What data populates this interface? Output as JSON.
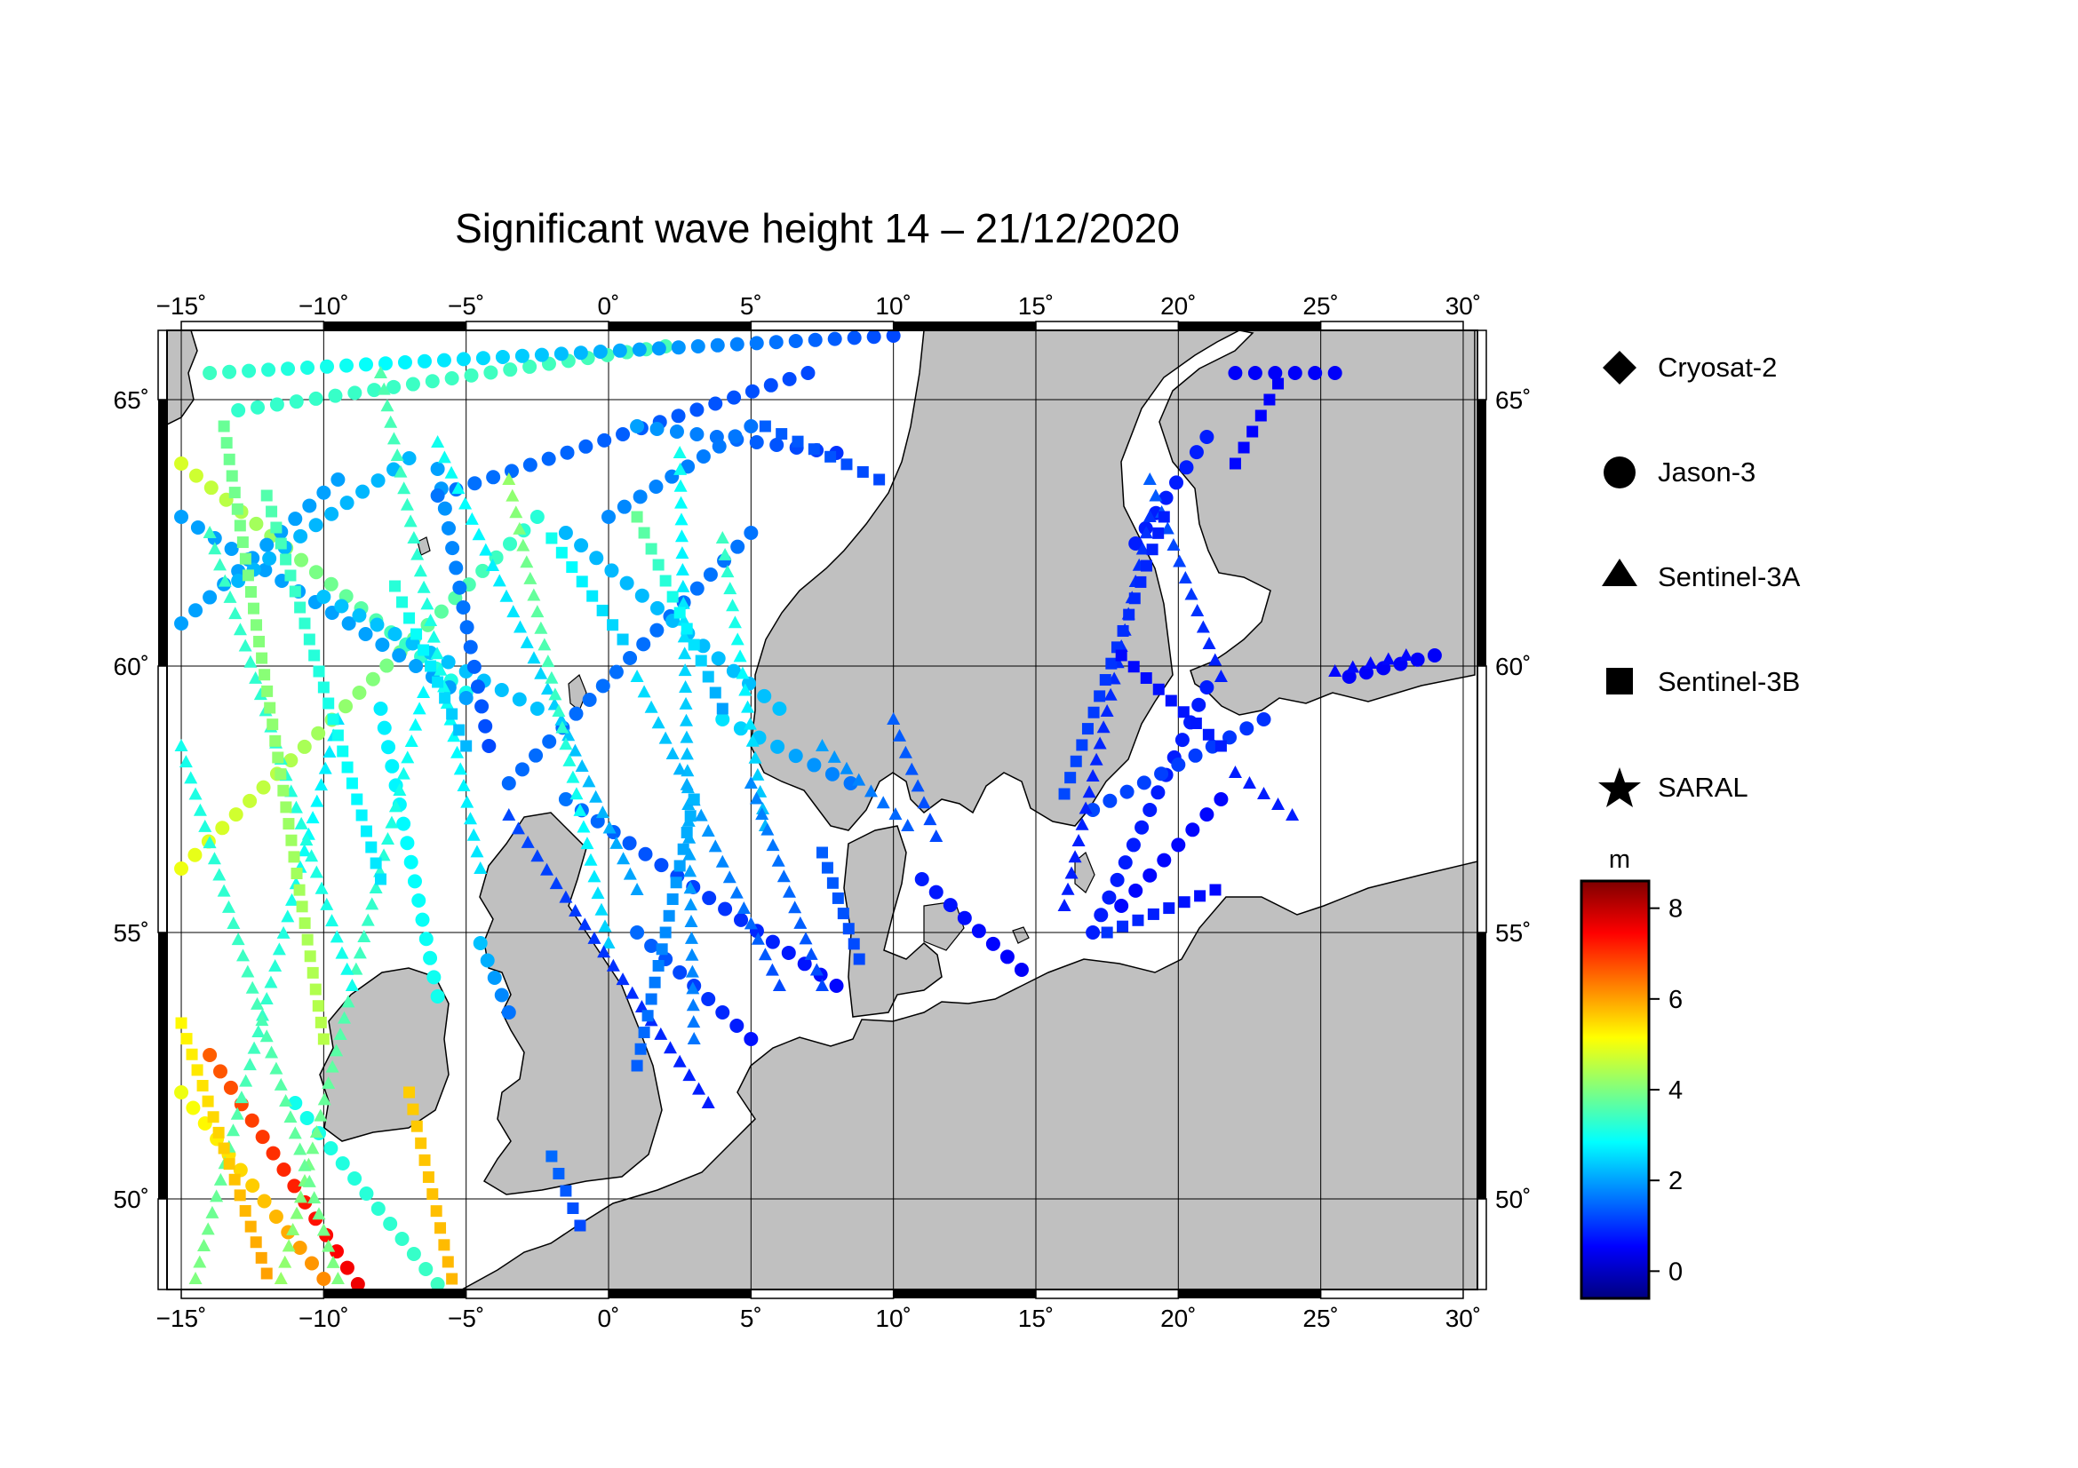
{
  "title": "Significant wave height 14 – 21/12/2020",
  "map": {
    "lon_range": [
      -15.5,
      30.5
    ],
    "lat_range": [
      48.3,
      66.3
    ],
    "lon_ticks": [
      -15,
      -10,
      -5,
      0,
      5,
      10,
      15,
      20,
      25,
      30
    ],
    "lon_labels": [
      "−15˚",
      "−10˚",
      "−5˚",
      "0˚",
      "5˚",
      "10˚",
      "15˚",
      "20˚",
      "25˚",
      "30˚"
    ],
    "lat_ticks": [
      50,
      55,
      60,
      65
    ],
    "lat_labels": [
      "50˚",
      "55˚",
      "60˚",
      "65˚"
    ],
    "land_color": "#c0c0c0",
    "sea_color": "#ffffff",
    "grid": true
  },
  "legend": {
    "items": [
      {
        "label": "Cryosat-2",
        "symbol": "diamond"
      },
      {
        "label": "Jason-3",
        "symbol": "circle"
      },
      {
        "label": "Sentinel-3A",
        "symbol": "triangle"
      },
      {
        "label": "Sentinel-3B",
        "symbol": "square"
      },
      {
        "label": "SARAL",
        "symbol": "star"
      }
    ]
  },
  "colorbar": {
    "unit": "m",
    "min": -0.6,
    "max": 8.6,
    "ticks": [
      0,
      2,
      4,
      6,
      8
    ],
    "tick_labels": [
      "0",
      "2",
      "4",
      "6",
      "8"
    ],
    "colormap": "jet"
  },
  "chart_data": {
    "type": "scatter",
    "title": "Significant wave height 14 – 21/12/2020",
    "value_unit": "m",
    "tracks": [
      {
        "satellite": "Jason-3",
        "start": [
          -15,
          56.2
        ],
        "end": [
          -2.5,
          62.8
        ],
        "swh": [
          5.0,
          3.2
        ]
      },
      {
        "satellite": "Jason-3",
        "start": [
          -15,
          63.8
        ],
        "end": [
          -5,
          59.5
        ],
        "swh": [
          4.8,
          3.0
        ]
      },
      {
        "satellite": "Jason-3",
        "start": [
          -14,
          52.7
        ],
        "end": [
          -8.8,
          48.4
        ],
        "swh": [
          6.6,
          7.6
        ]
      },
      {
        "satellite": "Jason-3",
        "start": [
          -15,
          52.0
        ],
        "end": [
          -10,
          48.5
        ],
        "swh": [
          5.0,
          6.2
        ]
      },
      {
        "satellite": "Jason-3",
        "start": [
          -15,
          62.8
        ],
        "end": [
          -5,
          59.4
        ],
        "swh": [
          2.0,
          2.0
        ]
      },
      {
        "satellite": "Jason-3",
        "start": [
          -15,
          60.8
        ],
        "end": [
          -9.5,
          63.5
        ],
        "swh": [
          2.0,
          2.0
        ]
      },
      {
        "satellite": "Jason-3",
        "start": [
          -13,
          61.6
        ],
        "end": [
          -7,
          63.9
        ],
        "swh": [
          2.2,
          2.2
        ]
      },
      {
        "satellite": "Jason-3",
        "start": [
          -10,
          61.3
        ],
        "end": [
          -2.5,
          59.2
        ],
        "swh": [
          2.3,
          2.3
        ]
      },
      {
        "satellite": "Jason-3",
        "start": [
          -6,
          63.7
        ],
        "end": [
          -4.2,
          58.5
        ],
        "swh": [
          2.0,
          1.2
        ]
      },
      {
        "satellite": "Jason-3",
        "start": [
          -3.5,
          57.8
        ],
        "end": [
          5,
          62.5
        ],
        "swh": [
          1.5,
          1.6
        ]
      },
      {
        "satellite": "Jason-3",
        "start": [
          -1.5,
          62.5
        ],
        "end": [
          6,
          59.2
        ],
        "swh": [
          2.2,
          2.3
        ]
      },
      {
        "satellite": "Jason-3",
        "start": [
          -6,
          63.2
        ],
        "end": [
          7,
          65.5
        ],
        "swh": [
          1.6,
          1.2
        ]
      },
      {
        "satellite": "Jason-3",
        "start": [
          -13,
          64.8
        ],
        "end": [
          2,
          66
        ],
        "swh": [
          3.3,
          3.5
        ]
      },
      {
        "satellite": "Jason-3",
        "start": [
          -14,
          65.5
        ],
        "end": [
          10,
          66.2
        ],
        "swh": [
          3.4,
          1.2
        ]
      },
      {
        "satellite": "Jason-3",
        "start": [
          1,
          64.5
        ],
        "end": [
          8,
          64.0
        ],
        "swh": [
          2.0,
          1.0
        ]
      },
      {
        "satellite": "Jason-3",
        "start": [
          0,
          62.8
        ],
        "end": [
          5,
          64.5
        ],
        "swh": [
          1.8,
          1.6
        ]
      },
      {
        "satellite": "Jason-3",
        "start": [
          -1.5,
          57.5
        ],
        "end": [
          8,
          54
        ],
        "swh": [
          1.6,
          0.6
        ]
      },
      {
        "satellite": "Jason-3",
        "start": [
          4,
          59
        ],
        "end": [
          8.5,
          57.8
        ],
        "swh": [
          2.6,
          1.6
        ]
      },
      {
        "satellite": "Jason-3",
        "start": [
          -8,
          59.2
        ],
        "end": [
          -6,
          53.8
        ],
        "swh": [
          2.7,
          3.0
        ]
      },
      {
        "satellite": "Jason-3",
        "start": [
          -11,
          51.8
        ],
        "end": [
          -6,
          48.4
        ],
        "swh": [
          3.0,
          3.4
        ]
      },
      {
        "satellite": "Jason-3",
        "start": [
          -4.5,
          54.8
        ],
        "end": [
          -3.5,
          53.5
        ],
        "swh": [
          2.3,
          1.6
        ]
      },
      {
        "satellite": "Jason-3",
        "start": [
          1,
          55
        ],
        "end": [
          5,
          53
        ],
        "swh": [
          1.5,
          0.7
        ]
      },
      {
        "satellite": "Jason-3",
        "start": [
          17,
          55
        ],
        "end": [
          21,
          59.6
        ],
        "swh": [
          0.8,
          0.8
        ]
      },
      {
        "satellite": "Jason-3",
        "start": [
          17,
          57.3
        ],
        "end": [
          23,
          59
        ],
        "swh": [
          1.2,
          1.0
        ]
      },
      {
        "satellite": "Jason-3",
        "start": [
          18,
          55.5
        ],
        "end": [
          21.5,
          57.5
        ],
        "swh": [
          0.6,
          0.6
        ]
      },
      {
        "satellite": "Jason-3",
        "start": [
          18.5,
          62.3
        ],
        "end": [
          21,
          64.3
        ],
        "swh": [
          0.8,
          0.8
        ]
      },
      {
        "satellite": "Jason-3",
        "start": [
          22,
          65.5
        ],
        "end": [
          25.5,
          65.5
        ],
        "swh": [
          0.5,
          0.5
        ]
      },
      {
        "satellite": "Jason-3",
        "start": [
          26,
          59.8
        ],
        "end": [
          29,
          60.2
        ],
        "swh": [
          0.5,
          0.5
        ]
      },
      {
        "satellite": "Jason-3",
        "start": [
          11,
          56
        ],
        "end": [
          14.5,
          54.3
        ],
        "swh": [
          0.8,
          0.5
        ]
      },
      {
        "satellite": "Sentinel-3A",
        "start": [
          -14.5,
          48.5
        ],
        "end": [
          -9.5,
          59
        ],
        "swh": [
          4.0,
          2.6
        ]
      },
      {
        "satellite": "Sentinel-3A",
        "start": [
          -11.5,
          48.5
        ],
        "end": [
          -6.5,
          59.5
        ],
        "swh": [
          4.2,
          2.8
        ]
      },
      {
        "satellite": "Sentinel-3A",
        "start": [
          -15,
          58.5
        ],
        "end": [
          -9.5,
          48.5
        ],
        "swh": [
          3.0,
          4.0
        ]
      },
      {
        "satellite": "Sentinel-3A",
        "start": [
          -14,
          62.5
        ],
        "end": [
          -9,
          54
        ],
        "swh": [
          3.4,
          3.0
        ]
      },
      {
        "satellite": "Sentinel-3A",
        "start": [
          -8,
          65.5
        ],
        "end": [
          -4.5,
          56.2
        ],
        "swh": [
          3.6,
          2.6
        ]
      },
      {
        "satellite": "Sentinel-3A",
        "start": [
          -6,
          64.2
        ],
        "end": [
          1,
          55.8
        ],
        "swh": [
          3.0,
          2.0
        ]
      },
      {
        "satellite": "Sentinel-3A",
        "start": [
          -3.5,
          63.5
        ],
        "end": [
          0,
          54.8
        ],
        "swh": [
          4.2,
          2.4
        ]
      },
      {
        "satellite": "Sentinel-3A",
        "start": [
          2.5,
          64
        ],
        "end": [
          3,
          53
        ],
        "swh": [
          3.0,
          1.6
        ]
      },
      {
        "satellite": "Sentinel-3A",
        "start": [
          4,
          62.4
        ],
        "end": [
          5.5,
          57
        ],
        "swh": [
          3.4,
          2.2
        ]
      },
      {
        "satellite": "Sentinel-3A",
        "start": [
          -3.5,
          57.2
        ],
        "end": [
          3.5,
          51.8
        ],
        "swh": [
          1.2,
          0.8
        ]
      },
      {
        "satellite": "Sentinel-3A",
        "start": [
          1,
          59.8
        ],
        "end": [
          6,
          54
        ],
        "swh": [
          2.6,
          1.2
        ]
      },
      {
        "satellite": "Sentinel-3A",
        "start": [
          5,
          57.8
        ],
        "end": [
          7.5,
          54
        ],
        "swh": [
          1.8,
          1.2
        ]
      },
      {
        "satellite": "Sentinel-3A",
        "start": [
          7.5,
          58.5
        ],
        "end": [
          10.5,
          57
        ],
        "swh": [
          2.0,
          1.4
        ]
      },
      {
        "satellite": "Sentinel-3A",
        "start": [
          19,
          63.5
        ],
        "end": [
          21.5,
          59.8
        ],
        "swh": [
          1.4,
          0.8
        ]
      },
      {
        "satellite": "Sentinel-3A",
        "start": [
          16,
          55.5
        ],
        "end": [
          19,
          62.8
        ],
        "swh": [
          0.8,
          1.0
        ]
      },
      {
        "satellite": "Sentinel-3A",
        "start": [
          22,
          58
        ],
        "end": [
          24,
          57.2
        ],
        "swh": [
          0.8,
          0.8
        ]
      },
      {
        "satellite": "Sentinel-3A",
        "start": [
          10,
          59
        ],
        "end": [
          11.5,
          56.8
        ],
        "swh": [
          1.4,
          1.2
        ]
      },
      {
        "satellite": "Sentinel-3A",
        "start": [
          25.5,
          59.9
        ],
        "end": [
          28,
          60.2
        ],
        "swh": [
          0.6,
          0.6
        ]
      },
      {
        "satellite": "Sentinel-3B",
        "start": [
          -13.5,
          64.5
        ],
        "end": [
          -10,
          53
        ],
        "swh": [
          3.8,
          4.5
        ]
      },
      {
        "satellite": "Sentinel-3B",
        "start": [
          -15,
          53.3
        ],
        "end": [
          -12,
          48.6
        ],
        "swh": [
          5.2,
          6.0
        ]
      },
      {
        "satellite": "Sentinel-3B",
        "start": [
          -7,
          52
        ],
        "end": [
          -5.5,
          48.5
        ],
        "swh": [
          5.6,
          5.8
        ]
      },
      {
        "satellite": "Sentinel-3B",
        "start": [
          -12,
          63.2
        ],
        "end": [
          -8,
          56
        ],
        "swh": [
          3.6,
          2.6
        ]
      },
      {
        "satellite": "Sentinel-3B",
        "start": [
          -7.5,
          61.5
        ],
        "end": [
          -5,
          58.5
        ],
        "swh": [
          3.2,
          2.2
        ]
      },
      {
        "satellite": "Sentinel-3B",
        "start": [
          -2,
          62.4
        ],
        "end": [
          0.5,
          60.5
        ],
        "swh": [
          3.0,
          2.4
        ]
      },
      {
        "satellite": "Sentinel-3B",
        "start": [
          1,
          62.8
        ],
        "end": [
          4,
          59.2
        ],
        "swh": [
          3.8,
          2.0
        ]
      },
      {
        "satellite": "Sentinel-3B",
        "start": [
          3,
          57.5
        ],
        "end": [
          1,
          52.5
        ],
        "swh": [
          2.2,
          1.4
        ]
      },
      {
        "satellite": "Sentinel-3B",
        "start": [
          7.5,
          56.5
        ],
        "end": [
          8.8,
          54.5
        ],
        "swh": [
          1.4,
          1.2
        ]
      },
      {
        "satellite": "Sentinel-3B",
        "start": [
          5.5,
          64.5
        ],
        "end": [
          9.5,
          63.5
        ],
        "swh": [
          1.4,
          1.2
        ]
      },
      {
        "satellite": "Sentinel-3B",
        "start": [
          17.5,
          55
        ],
        "end": [
          21.3,
          55.8
        ],
        "swh": [
          1.0,
          0.6
        ]
      },
      {
        "satellite": "Sentinel-3B",
        "start": [
          16,
          57.6
        ],
        "end": [
          19.5,
          62.8
        ],
        "swh": [
          1.2,
          0.8
        ]
      },
      {
        "satellite": "Sentinel-3B",
        "start": [
          22,
          63.8
        ],
        "end": [
          23.5,
          65.3
        ],
        "swh": [
          0.6,
          0.5
        ]
      },
      {
        "satellite": "Sentinel-3B",
        "start": [
          18,
          60.2
        ],
        "end": [
          21.5,
          58.5
        ],
        "swh": [
          0.6,
          0.8
        ]
      },
      {
        "satellite": "Sentinel-3B",
        "start": [
          -2,
          50.8
        ],
        "end": [
          -1,
          49.5
        ],
        "swh": [
          1.5,
          1.2
        ]
      }
    ]
  }
}
